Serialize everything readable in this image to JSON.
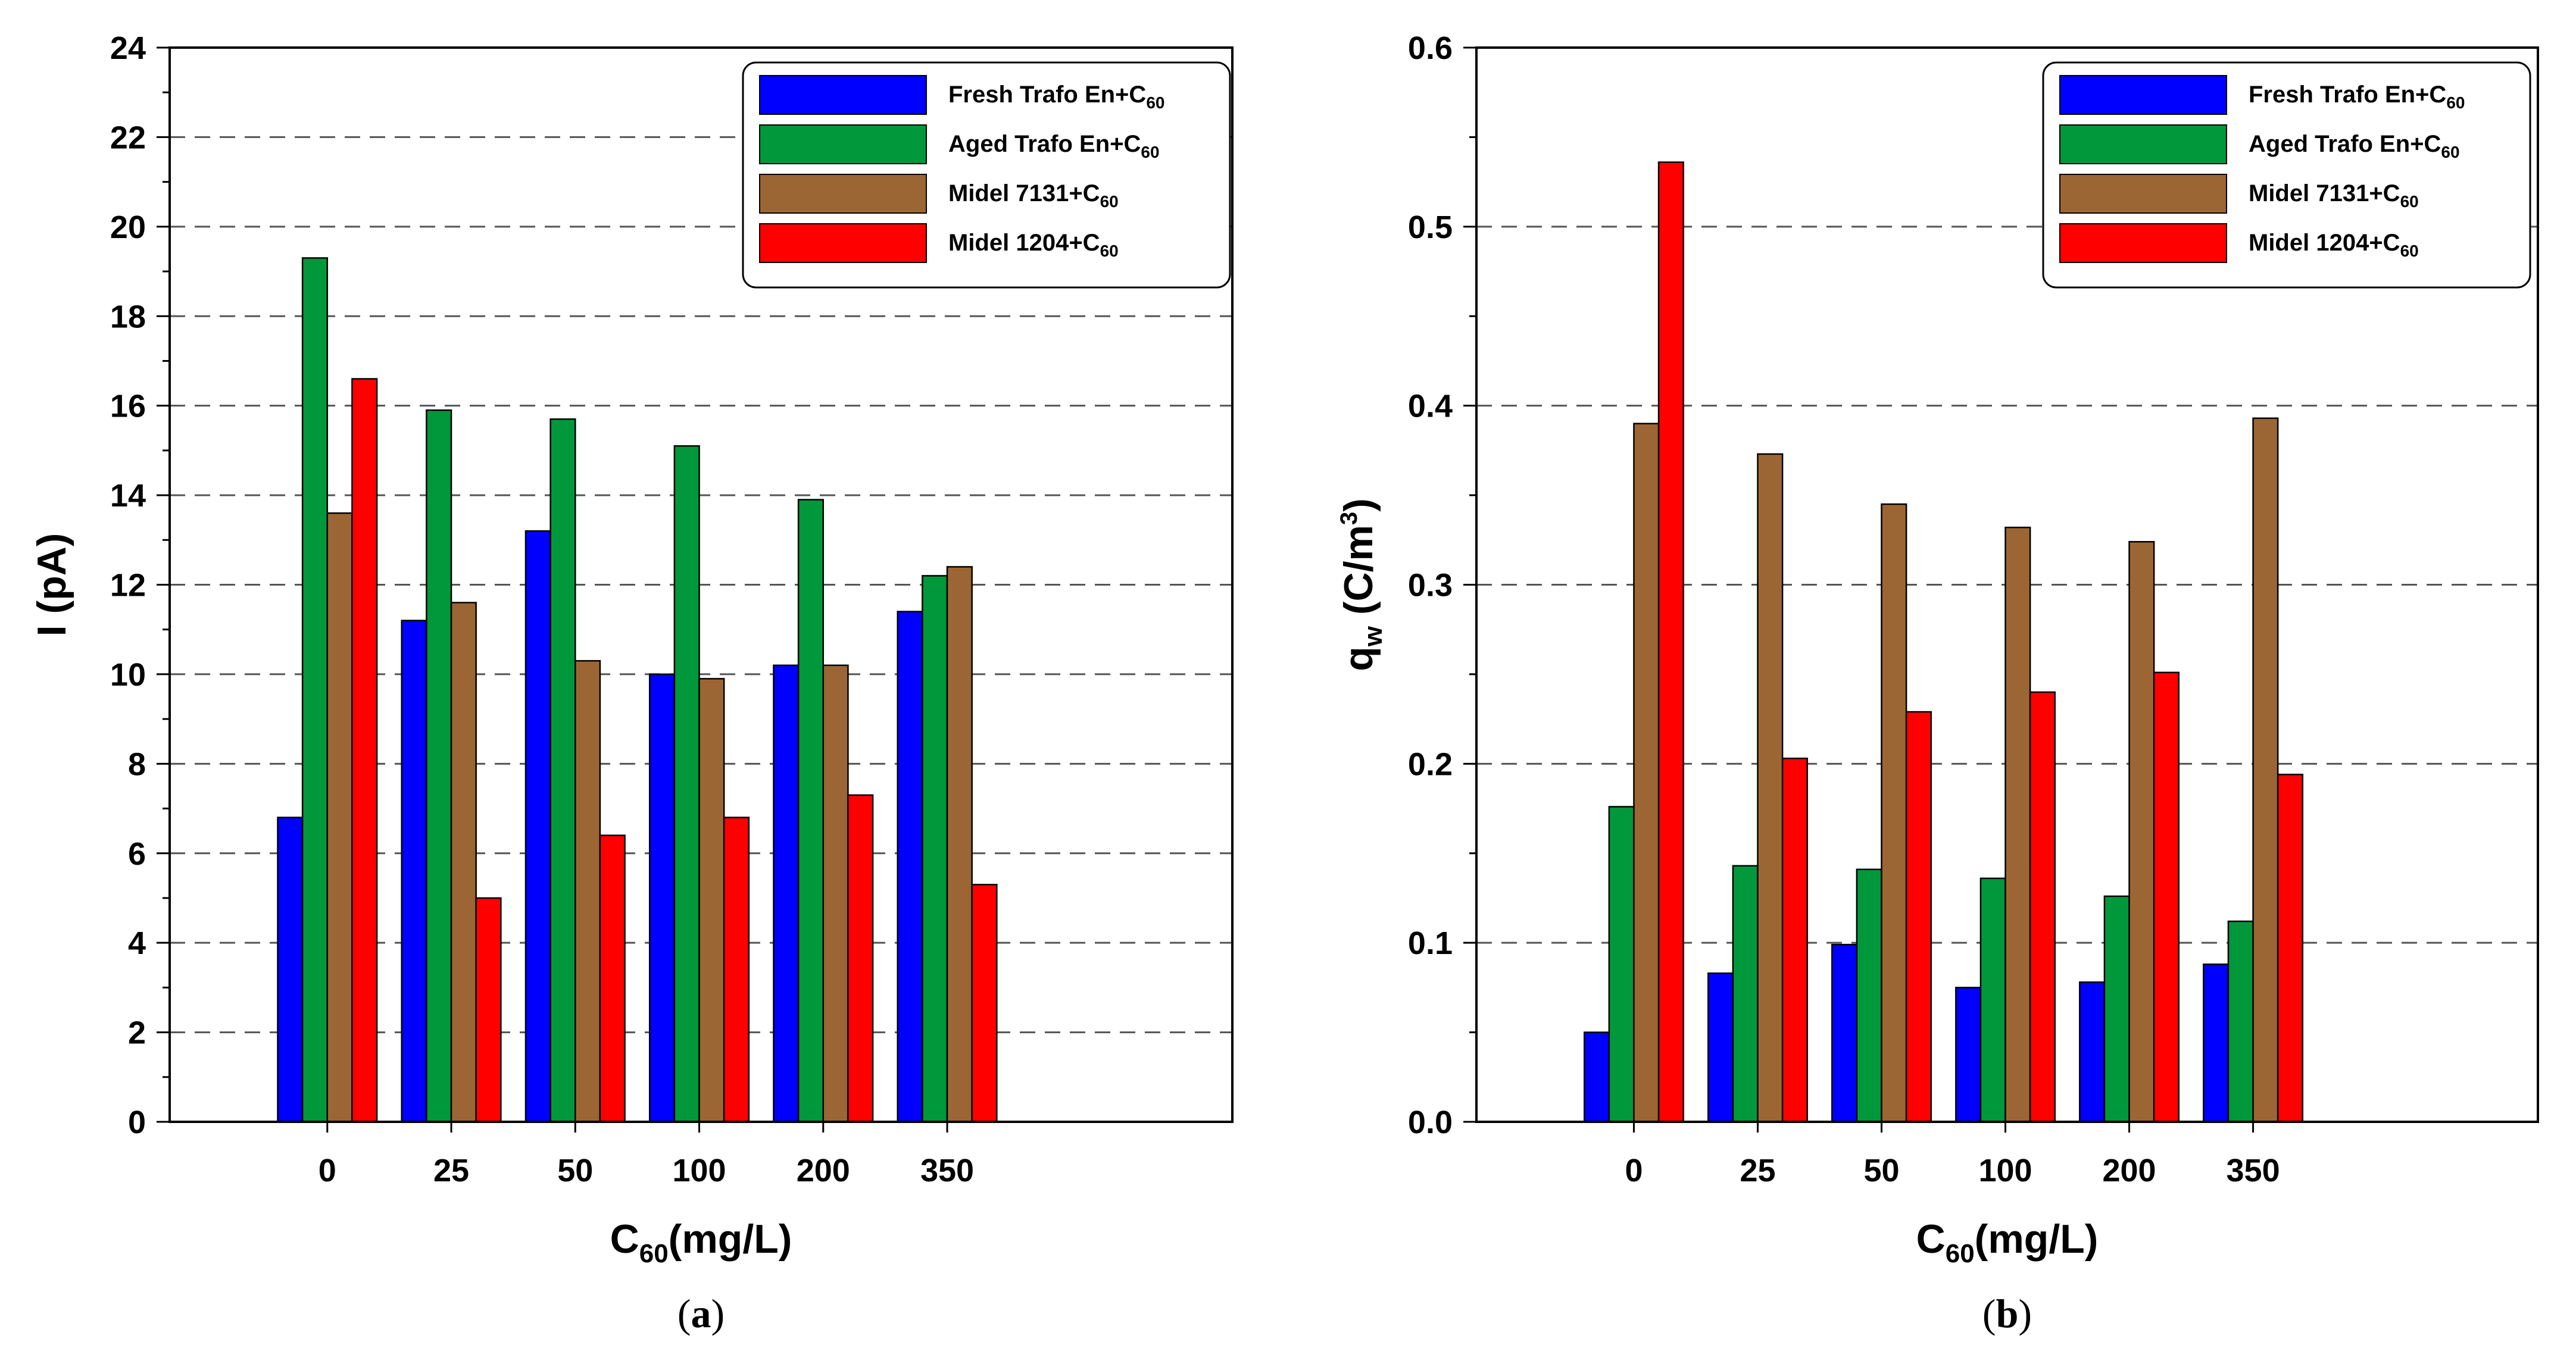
{
  "chart_data": [
    {
      "id": "a",
      "type": "bar",
      "categories": [
        "0",
        "25",
        "50",
        "100",
        "200",
        "350"
      ],
      "series": [
        {
          "name": "Fresh Trafo En+C60",
          "label_main": "Fresh Trafo En+C",
          "label_sub": "60",
          "color": "#0000FF",
          "values": [
            6.8,
            11.2,
            13.2,
            10.0,
            10.2,
            11.4
          ]
        },
        {
          "name": "Aged Trafo En+C60",
          "label_main": "Aged Trafo En+C",
          "label_sub": "60",
          "color": "#00983A",
          "values": [
            19.3,
            15.9,
            15.7,
            15.1,
            13.9,
            12.2
          ]
        },
        {
          "name": "Midel 7131+C60",
          "label_main": "Midel 7131+C",
          "label_sub": "60",
          "color": "#9C6634",
          "values": [
            13.6,
            11.6,
            10.3,
            9.9,
            10.2,
            12.4
          ]
        },
        {
          "name": "Midel 1204+C60",
          "label_main": "Midel 1204+C",
          "label_sub": "60",
          "color": "#FF0000",
          "values": [
            16.6,
            5.0,
            6.4,
            6.8,
            7.3,
            5.3
          ]
        }
      ],
      "ylim": [
        0,
        24
      ],
      "yticks": [
        "0",
        "2",
        "4",
        "6",
        "8",
        "10",
        "12",
        "14",
        "16",
        "18",
        "20",
        "22",
        "24"
      ],
      "ytick_values": [
        0,
        2,
        4,
        6,
        8,
        10,
        12,
        14,
        16,
        18,
        20,
        22,
        24
      ],
      "ylabel": "I (pA)",
      "xlabel_main": "C",
      "xlabel_sub": "60",
      "xlabel_rest": "(mg/L)",
      "caption_open": "(",
      "caption_letter": "a",
      "caption_close": ")",
      "grid": "horizontal dashed",
      "legend_position": "top-right"
    },
    {
      "id": "b",
      "type": "bar",
      "categories": [
        "0",
        "25",
        "50",
        "100",
        "200",
        "350"
      ],
      "series": [
        {
          "name": "Fresh Trafo En+C60",
          "label_main": "Fresh Trafo En+C",
          "label_sub": "60",
          "color": "#0000FF",
          "values": [
            0.05,
            0.083,
            0.099,
            0.075,
            0.078,
            0.088
          ]
        },
        {
          "name": "Aged Trafo En+C60",
          "label_main": "Aged Trafo En+C",
          "label_sub": "60",
          "color": "#00983A",
          "values": [
            0.176,
            0.143,
            0.141,
            0.136,
            0.126,
            0.112
          ]
        },
        {
          "name": "Midel 7131+C60",
          "label_main": "Midel 7131+C",
          "label_sub": "60",
          "color": "#9C6634",
          "values": [
            0.39,
            0.373,
            0.345,
            0.332,
            0.324,
            0.393
          ]
        },
        {
          "name": "Midel 1204+C60",
          "label_main": "Midel 1204+C",
          "label_sub": "60",
          "color": "#FF0000",
          "values": [
            0.536,
            0.203,
            0.229,
            0.24,
            0.251,
            0.194
          ]
        }
      ],
      "ylim": [
        0,
        0.6
      ],
      "yticks": [
        "0.0",
        "0.1",
        "0.2",
        "0.3",
        "0.4",
        "0.5",
        "0.6"
      ],
      "ytick_values": [
        0,
        0.1,
        0.2,
        0.3,
        0.4,
        0.5,
        0.6
      ],
      "ylabel_main": "q",
      "ylabel_sub": "w",
      "ylabel_rest": " (C/m",
      "ylabel_sup": "3",
      "ylabel_close": ")",
      "xlabel_main": "C",
      "xlabel_sub": "60",
      "xlabel_rest": "(mg/L)",
      "caption_open": "(",
      "caption_letter": "b",
      "caption_close": ")",
      "grid": "horizontal dashed",
      "legend_position": "top-right"
    }
  ]
}
